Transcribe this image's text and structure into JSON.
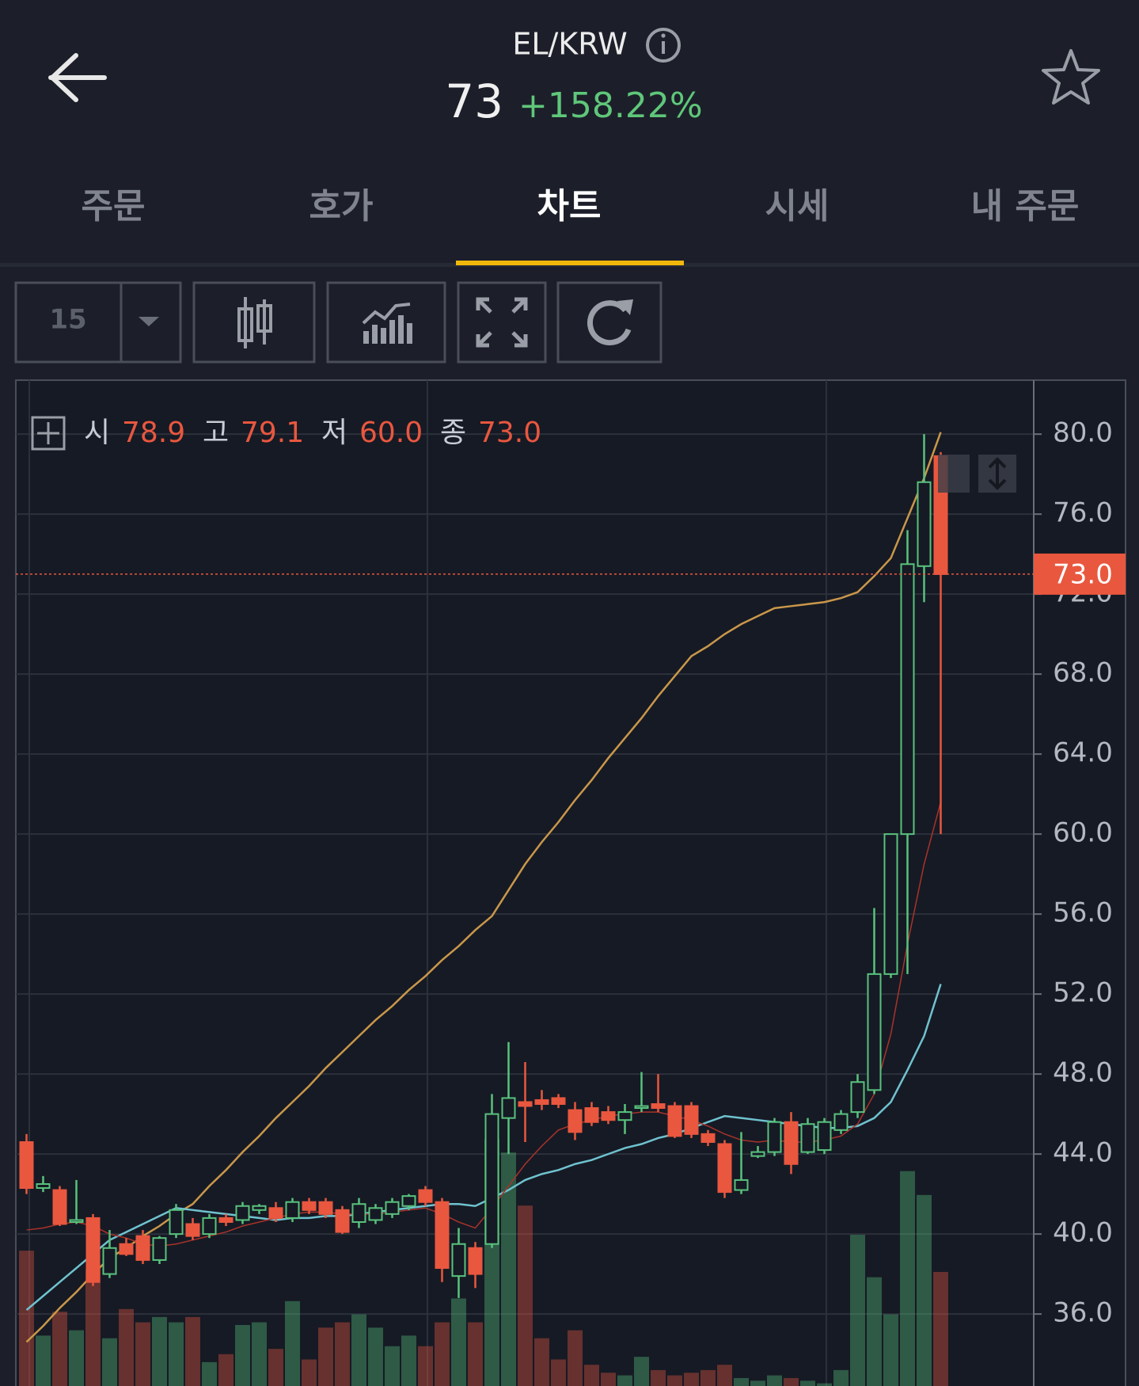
{
  "header": {
    "title": "EL/KRW",
    "price": "73",
    "change": "+158.22%"
  },
  "tabs": [
    "주문",
    "호가",
    "차트",
    "시세",
    "내 주문"
  ],
  "active_tab": 2,
  "toolbar": {
    "interval": "15"
  },
  "chart_data": {
    "type": "candlestick",
    "info": [
      {
        "label": "시",
        "value": "78.9"
      },
      {
        "label": "고",
        "value": "79.1"
      },
      {
        "label": "저",
        "value": "60.0"
      },
      {
        "label": "종",
        "value": "73.0"
      }
    ],
    "ylim": [
      32.4,
      82.7
    ],
    "yticks": [
      {
        "value": 36,
        "label": "36.0"
      },
      {
        "value": 40,
        "label": "40.0"
      },
      {
        "value": 44,
        "label": "44.0"
      },
      {
        "value": 48,
        "label": "48.0"
      },
      {
        "value": 52,
        "label": "52.0"
      },
      {
        "value": 56,
        "label": "56.0"
      },
      {
        "value": 60,
        "label": "60.0"
      },
      {
        "value": 64,
        "label": "64.0"
      },
      {
        "value": 68,
        "label": "68.0"
      },
      {
        "value": 72,
        "label": "72.0"
      },
      {
        "value": 76,
        "label": "76.0"
      },
      {
        "value": 80,
        "label": "80.0"
      }
    ],
    "last_price": {
      "value": 73,
      "label": "73.0"
    },
    "up_color": "#58c27d",
    "down_color": "#e9573f",
    "open": [
      44.6,
      42.3,
      42.2,
      40.6,
      40.8,
      38.0,
      39.5,
      39.9,
      38.7,
      40.0,
      40.5,
      40.0,
      40.8,
      40.7,
      41.2,
      41.3,
      40.8,
      41.6,
      41.6,
      41.2,
      40.6,
      40.7,
      41.0,
      41.4,
      42.2,
      41.6,
      37.9,
      39.3,
      39.5,
      45.8,
      46.6,
      46.7,
      46.8,
      46.2,
      46.3,
      46.1,
      45.7,
      46.3,
      46.5,
      46.4,
      46.4,
      45.0,
      44.5,
      42.2,
      43.9,
      44.1,
      45.6,
      44.1,
      44.2,
      45.2,
      46.1,
      47.2,
      53.0,
      60.0,
      73.4,
      78.9
    ],
    "high": [
      45.0,
      42.9,
      42.4,
      42.7,
      41.0,
      40.2,
      39.8,
      40.2,
      39.9,
      41.5,
      40.8,
      41.0,
      41.0,
      41.6,
      41.5,
      41.6,
      41.8,
      41.8,
      41.8,
      41.4,
      41.8,
      41.5,
      41.8,
      42.0,
      42.4,
      41.8,
      40.3,
      39.6,
      47.0,
      49.6,
      48.6,
      47.2,
      47.0,
      46.6,
      46.6,
      46.4,
      46.5,
      48.1,
      48.0,
      46.6,
      46.6,
      45.2,
      44.7,
      45.1,
      44.4,
      45.8,
      46.1,
      45.8,
      45.8,
      46.2,
      48.0,
      56.3,
      60.0,
      75.2,
      80.0,
      79.1
    ],
    "low": [
      42.0,
      42.1,
      40.4,
      40.5,
      37.4,
      37.8,
      38.9,
      38.5,
      38.5,
      39.8,
      39.7,
      39.8,
      40.4,
      40.5,
      41.0,
      40.6,
      40.6,
      41.0,
      40.8,
      40.0,
      40.3,
      40.5,
      40.8,
      41.2,
      41.4,
      37.6,
      36.8,
      37.3,
      39.3,
      44.0,
      44.6,
      46.2,
      46.3,
      44.7,
      45.4,
      45.5,
      45.0,
      46.1,
      46.1,
      44.8,
      44.8,
      44.4,
      41.8,
      42.0,
      43.8,
      43.9,
      43.0,
      44.0,
      44.0,
      45.0,
      45.8,
      47.0,
      52.8,
      53.0,
      71.6,
      60.0
    ],
    "close": [
      42.3,
      42.5,
      40.5,
      40.7,
      37.6,
      39.3,
      39.0,
      38.7,
      39.8,
      41.2,
      39.9,
      40.8,
      40.6,
      41.4,
      41.4,
      40.8,
      41.6,
      41.2,
      41.0,
      40.1,
      41.5,
      41.3,
      41.6,
      41.9,
      41.6,
      38.3,
      39.5,
      38.0,
      46.0,
      46.8,
      46.4,
      46.5,
      46.5,
      45.1,
      45.6,
      45.7,
      46.1,
      46.4,
      46.3,
      44.9,
      45.0,
      44.6,
      42.1,
      42.7,
      44.1,
      45.6,
      43.5,
      45.5,
      45.6,
      46.0,
      47.6,
      53.0,
      60.0,
      73.5,
      77.6,
      73.0
    ],
    "vlim": [
      0,
      100
    ],
    "volume": [
      51,
      19,
      28,
      21,
      44,
      18,
      29,
      24,
      26,
      24,
      26,
      9,
      12,
      23,
      24,
      14,
      32,
      10,
      22,
      24,
      27,
      22,
      15,
      19,
      15,
      24,
      33,
      24,
      93,
      88,
      68,
      18,
      10,
      21,
      8,
      5,
      4,
      11,
      6,
      4,
      5,
      6,
      8,
      3,
      2,
      4,
      3,
      2,
      1,
      6,
      57,
      41,
      27,
      81,
      72,
      43
    ],
    "ma": [
      {
        "color": "#c9974a",
        "values": [
          34.6,
          35.4,
          36.3,
          37.1,
          38.0,
          38.8,
          39.3,
          39.9,
          40.4,
          41.0,
          41.5,
          42.4,
          43.2,
          44.1,
          44.9,
          45.8,
          46.6,
          47.4,
          48.3,
          49.1,
          49.9,
          50.7,
          51.4,
          52.2,
          52.9,
          53.7,
          54.4,
          55.2,
          55.9,
          57.2,
          58.5,
          59.6,
          60.6,
          61.7,
          62.7,
          63.8,
          64.8,
          65.8,
          66.9,
          67.9,
          68.9,
          69.4,
          70.0,
          70.5,
          70.9,
          71.3,
          71.4,
          71.5,
          71.6,
          71.8,
          72.1,
          72.9,
          73.8,
          75.8,
          77.8,
          80.1
        ]
      },
      {
        "color": "#6fc2cf",
        "values": [
          36.2,
          36.9,
          37.6,
          38.3,
          39.0,
          39.7,
          40.1,
          40.5,
          40.9,
          41.3,
          41.2,
          41.1,
          41.0,
          40.9,
          40.8,
          40.7,
          40.8,
          40.8,
          40.9,
          40.9,
          41.0,
          41.1,
          41.2,
          41.3,
          41.4,
          41.5,
          41.5,
          41.4,
          41.8,
          42.2,
          42.7,
          43.0,
          43.2,
          43.5,
          43.7,
          44.0,
          44.3,
          44.5,
          44.8,
          45.0,
          45.3,
          45.6,
          45.9,
          45.8,
          45.7,
          45.6,
          45.5,
          45.4,
          45.3,
          45.3,
          45.4,
          45.8,
          46.6,
          48.2,
          49.9,
          52.5
        ]
      },
      {
        "color": "#a8332b",
        "values": [
          40.2,
          40.3,
          40.5,
          40.6,
          40.4,
          40.0,
          39.8,
          39.5,
          39.4,
          39.5,
          39.7,
          39.9,
          40.1,
          40.4,
          40.6,
          40.8,
          41.0,
          41.1,
          41.1,
          41.0,
          41.0,
          41.0,
          41.1,
          41.2,
          41.3,
          41.0,
          40.6,
          40.3,
          41.3,
          42.4,
          43.5,
          44.4,
          45.2,
          45.5,
          45.7,
          45.9,
          46.0,
          46.1,
          46.1,
          45.9,
          45.7,
          45.4,
          45.0,
          44.7,
          44.6,
          44.7,
          44.6,
          44.6,
          44.7,
          44.9,
          45.5,
          47.0,
          50.0,
          54.5,
          58.5,
          61.6
        ]
      }
    ]
  }
}
